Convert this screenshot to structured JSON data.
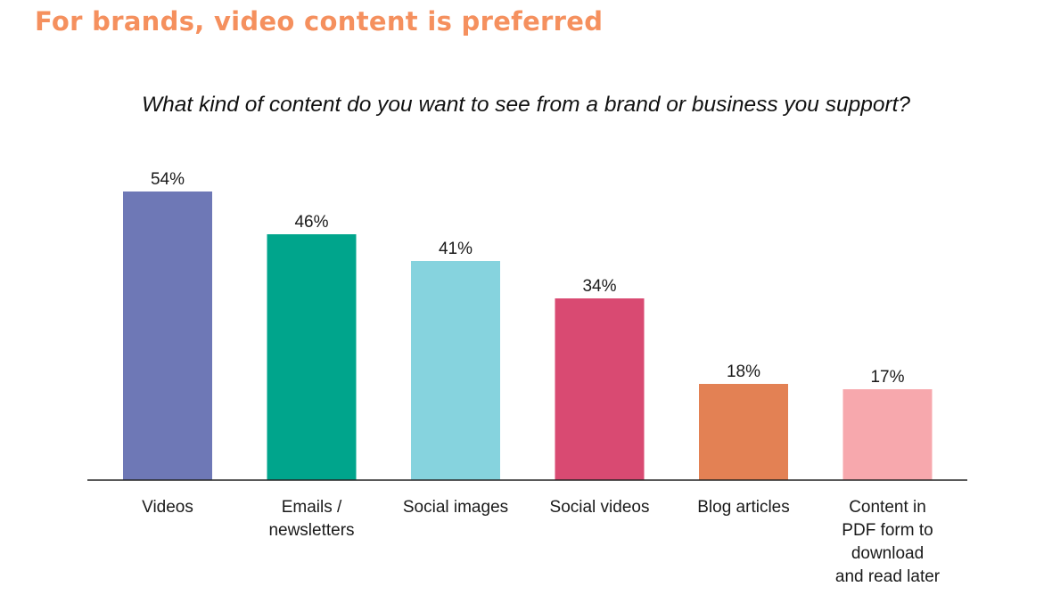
{
  "headline": "For brands, video content is preferred",
  "chart_data": {
    "type": "bar",
    "title": "What kind of content do you want to see from a brand or business you support?",
    "categories": [
      [
        "Videos"
      ],
      [
        "Emails /",
        "newsletters"
      ],
      [
        "Social images"
      ],
      [
        "Social videos"
      ],
      [
        "Blog articles"
      ],
      [
        "Content in",
        "PDF form to",
        "download",
        "and read later"
      ]
    ],
    "values": [
      54,
      46,
      41,
      34,
      18,
      17
    ],
    "value_labels": [
      "54%",
      "46%",
      "41%",
      "34%",
      "18%",
      "17%"
    ],
    "colors": [
      "#6e78b6",
      "#00a58c",
      "#86d3de",
      "#d94a72",
      "#e38154",
      "#f7a8ad"
    ],
    "unit": "%",
    "grid": false,
    "legend": "none"
  }
}
